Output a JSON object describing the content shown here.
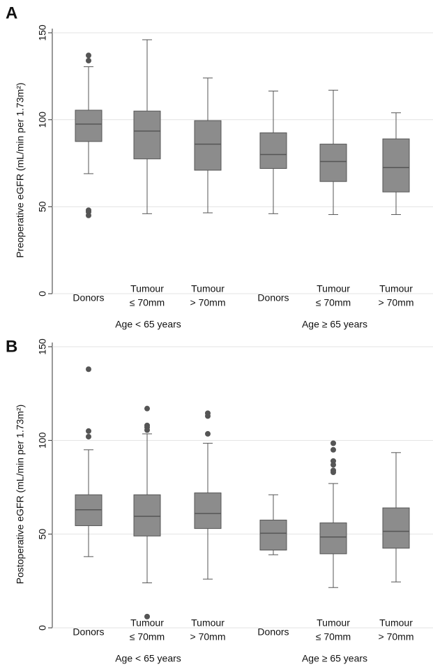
{
  "chart_data": [
    {
      "type": "box",
      "panel_label": "A",
      "y_label": "Preoperative eGFR (mL/min per 1.73m²)",
      "categories": [
        [
          "Donors"
        ],
        [
          "Tumour",
          "≤ 70mm"
        ],
        [
          "Tumour",
          "> 70mm"
        ],
        [
          "Donors"
        ],
        [
          "Tumour",
          "≤ 70mm"
        ],
        [
          "Tumour",
          "> 70mm"
        ]
      ],
      "groups": [
        "Age < 65 years",
        "Age ≥ 65 years"
      ],
      "ylim": [
        0,
        150
      ],
      "yticks": [
        0,
        50,
        100,
        150
      ],
      "grid": true,
      "color": "#8c8c8c",
      "boxes": [
        {
          "whislo": 69,
          "q1": 87.5,
          "med": 97.5,
          "q3": 105.5,
          "whishi": 130.5,
          "fliers": [
            137,
            134,
            48,
            47,
            45
          ]
        },
        {
          "whislo": 46,
          "q1": 77.5,
          "med": 93.5,
          "q3": 105,
          "whishi": 146,
          "fliers": []
        },
        {
          "whislo": 46.5,
          "q1": 71,
          "med": 86,
          "q3": 99.5,
          "whishi": 124,
          "fliers": []
        },
        {
          "whislo": 46,
          "q1": 72,
          "med": 80,
          "q3": 92.5,
          "whishi": 116.5,
          "fliers": []
        },
        {
          "whislo": 45.5,
          "q1": 64.5,
          "med": 76,
          "q3": 86,
          "whishi": 117,
          "fliers": []
        },
        {
          "whislo": 45.5,
          "q1": 58.5,
          "med": 72.5,
          "q3": 89,
          "whishi": 104,
          "fliers": []
        }
      ]
    },
    {
      "type": "box",
      "panel_label": "B",
      "y_label": "Postoperative eGFR (mL/min per 1.73m²)",
      "categories": [
        [
          "Donors"
        ],
        [
          "Tumour",
          "≤ 70mm"
        ],
        [
          "Tumour",
          "> 70mm"
        ],
        [
          "Donors"
        ],
        [
          "Tumour",
          "≤ 70mm"
        ],
        [
          "Tumour",
          "> 70mm"
        ]
      ],
      "groups": [
        "Age < 65 years",
        "Age ≥ 65 years"
      ],
      "ylim": [
        0,
        150
      ],
      "yticks": [
        0,
        50,
        100,
        150
      ],
      "grid": true,
      "color": "#8c8c8c",
      "boxes": [
        {
          "whislo": 38,
          "q1": 54.5,
          "med": 63,
          "q3": 71,
          "whishi": 95,
          "fliers": [
            138,
            105,
            102
          ]
        },
        {
          "whislo": 24,
          "q1": 49,
          "med": 59.5,
          "q3": 71,
          "whishi": 103.5,
          "fliers": [
            117,
            108,
            107,
            105.5,
            6
          ]
        },
        {
          "whislo": 26,
          "q1": 53,
          "med": 61,
          "q3": 72,
          "whishi": 98.5,
          "fliers": [
            114.5,
            113,
            103.5
          ]
        },
        {
          "whislo": 39,
          "q1": 41.5,
          "med": 50.5,
          "q3": 57.5,
          "whishi": 71,
          "fliers": []
        },
        {
          "whislo": 21.5,
          "q1": 39.5,
          "med": 48.5,
          "q3": 56,
          "whishi": 77,
          "fliers": [
            98.5,
            95,
            89,
            87,
            84,
            83
          ]
        },
        {
          "whislo": 24.5,
          "q1": 42.5,
          "med": 51.5,
          "q3": 64,
          "whishi": 93.5,
          "fliers": []
        }
      ]
    }
  ]
}
